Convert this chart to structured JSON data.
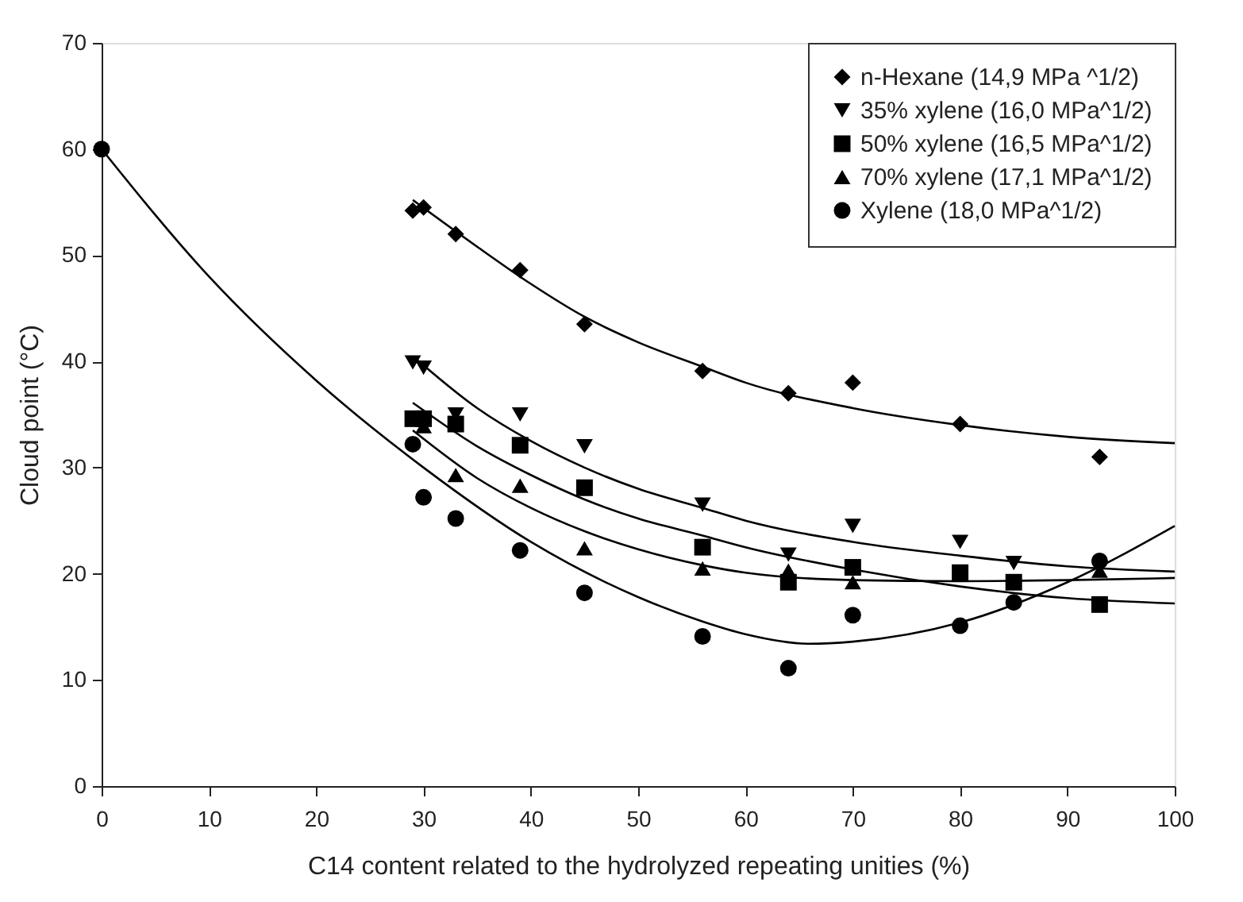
{
  "chart_data": {
    "type": "scatter",
    "xlabel": "C14 content related to the hydrolyzed repeating unities (%)",
    "ylabel": "Cloud point (°C)",
    "xlim": [
      0,
      100
    ],
    "xticks": [
      0,
      10,
      20,
      30,
      40,
      50,
      60,
      70,
      80,
      90,
      100
    ],
    "ylim": [
      0,
      70
    ],
    "yticks": [
      0,
      10,
      20,
      30,
      40,
      50,
      60,
      70
    ],
    "grid": false,
    "legend": "top right",
    "series": [
      {
        "type": "scatter",
        "name": "n-Hexane (14,9 MPa ^1/2)",
        "color": "#000000",
        "marker": "diamond",
        "x": [
          29,
          30,
          33,
          39,
          45,
          56,
          64,
          70,
          80,
          93
        ],
        "values": [
          54.2,
          54.5,
          52.0,
          48.6,
          43.5,
          39.1,
          37.0,
          38.0,
          34.1,
          31.0
        ]
      },
      {
        "type": "scatter",
        "name": "35% xylene (16,0 MPa^1/2)",
        "color": "#000000",
        "marker": "triangle-down",
        "x": [
          29,
          30,
          33,
          39,
          45,
          56,
          64,
          70,
          80,
          85
        ],
        "values": [
          39.9,
          39.4,
          35.0,
          35.0,
          32.0,
          26.5,
          21.8,
          24.5,
          23.0,
          21.0
        ]
      },
      {
        "type": "scatter",
        "name": "50% xylene (16,5 MPa^1/2)",
        "color": "#000000",
        "marker": "square",
        "x": [
          29,
          30,
          33,
          39,
          45,
          56,
          64,
          70,
          80,
          85,
          93
        ],
        "values": [
          34.6,
          34.6,
          34.1,
          32.1,
          28.1,
          22.5,
          19.2,
          20.6,
          20.1,
          19.2,
          17.1
        ]
      },
      {
        "type": "scatter",
        "name": "70% xylene (17,1 MPa^1/2)",
        "color": "#000000",
        "marker": "triangle",
        "x": [
          30,
          33,
          39,
          45,
          56,
          64,
          70,
          93
        ],
        "values": [
          33.9,
          29.3,
          28.3,
          22.4,
          20.5,
          20.3,
          19.2,
          20.3
        ]
      },
      {
        "type": "scatter",
        "name": "Xylene (18,0 MPa^1/2)",
        "color": "#000000",
        "marker": "circle",
        "x": [
          0,
          29,
          30,
          33,
          39,
          45,
          56,
          64,
          70,
          80,
          85,
          93
        ],
        "values": [
          60.0,
          32.2,
          27.2,
          25.2,
          22.2,
          18.2,
          14.1,
          11.1,
          16.1,
          15.1,
          17.3,
          21.2
        ]
      },
      {
        "type": "line",
        "color": "#000000",
        "marker": "none",
        "x": [
          29,
          35,
          40,
          45,
          50,
          56,
          60,
          70,
          80,
          90,
          100
        ],
        "values": [
          55.2,
          50.8,
          47.3,
          44.2,
          41.8,
          39.5,
          38.0,
          35.6,
          34.0,
          32.9,
          32.3
        ]
      },
      {
        "type": "line",
        "color": "#000000",
        "marker": "none",
        "x": [
          29,
          35,
          40,
          45,
          50,
          56,
          60,
          70,
          80,
          90,
          100
        ],
        "values": [
          40.5,
          35.6,
          32.5,
          30.0,
          28.0,
          26.2,
          25.0,
          23.0,
          21.7,
          20.7,
          20.2
        ]
      },
      {
        "type": "line",
        "color": "#000000",
        "marker": "none",
        "x": [
          29,
          35,
          40,
          45,
          50,
          56,
          60,
          70,
          80,
          90,
          100
        ],
        "values": [
          36.1,
          32.0,
          29.3,
          27.0,
          25.2,
          23.6,
          22.5,
          20.4,
          18.8,
          17.7,
          17.2
        ]
      },
      {
        "type": "line",
        "color": "#000000",
        "marker": "none",
        "x": [
          29,
          35,
          40,
          45,
          50,
          56,
          60,
          70,
          80,
          90,
          100
        ],
        "values": [
          33.5,
          29.0,
          26.2,
          24.0,
          22.3,
          20.8,
          20.1,
          19.4,
          19.3,
          19.4,
          19.6
        ]
      },
      {
        "type": "line",
        "color": "#000000",
        "marker": "none",
        "x": [
          0,
          10,
          20,
          30,
          40,
          50,
          56,
          60,
          66,
          70,
          80,
          90,
          100
        ],
        "values": [
          60.0,
          48.0,
          38.2,
          30.0,
          23.0,
          17.8,
          15.5,
          14.3,
          13.4,
          13.6,
          15.4,
          19.2,
          24.5
        ]
      }
    ]
  }
}
